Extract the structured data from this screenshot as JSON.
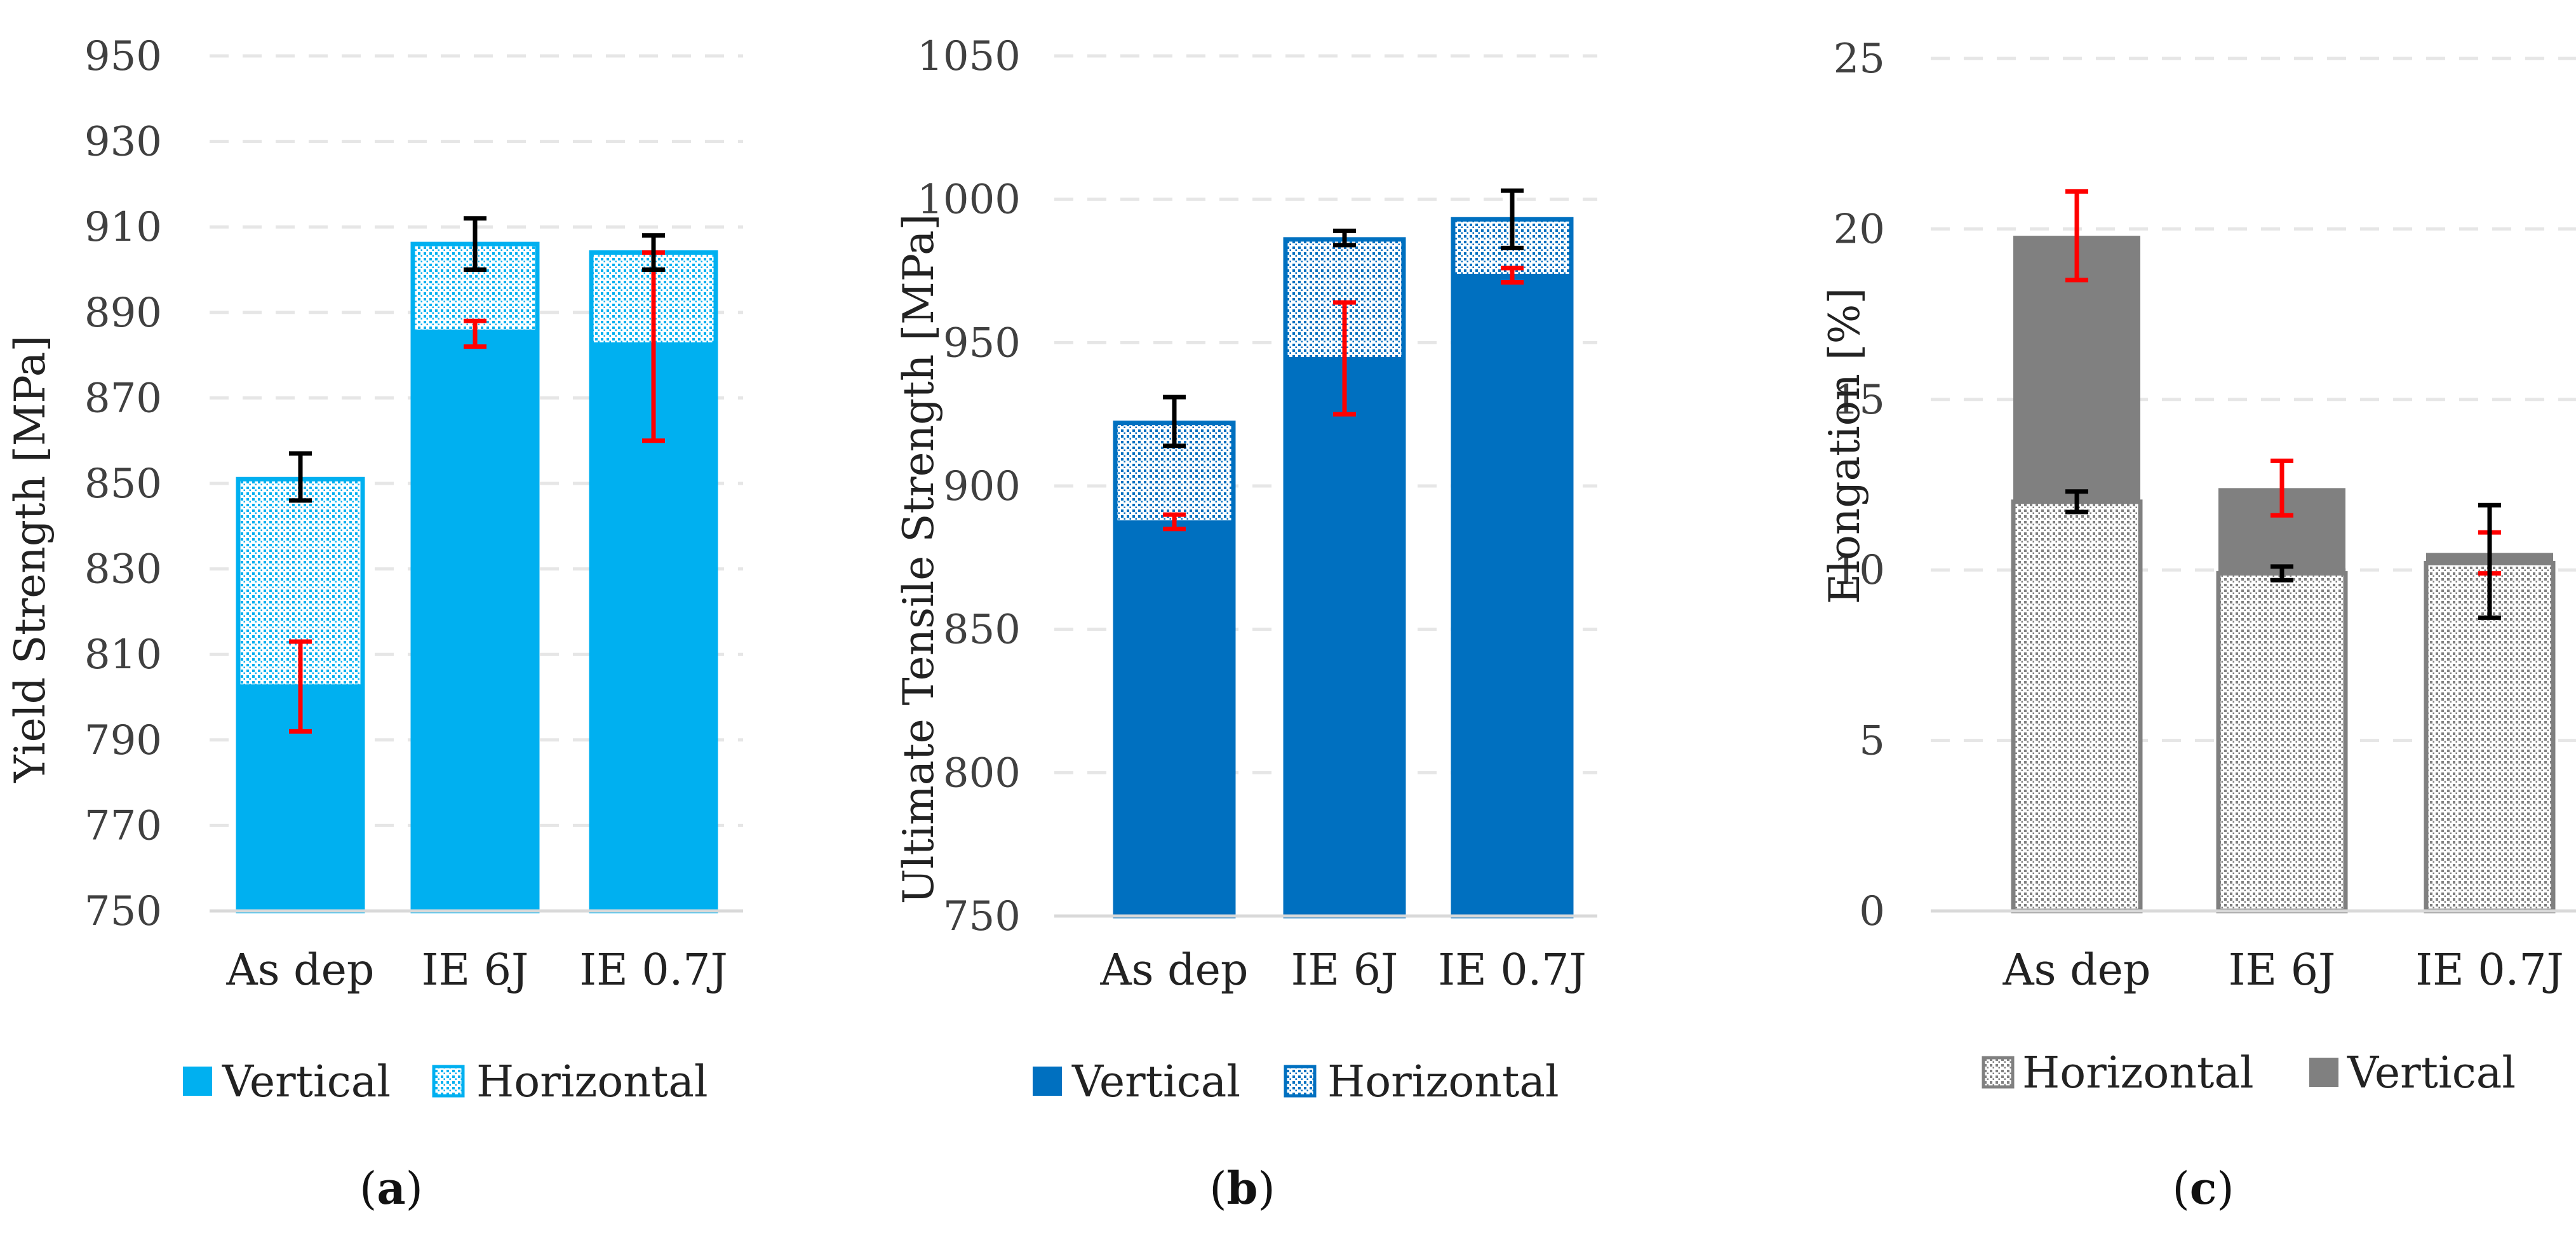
{
  "chart_data": [
    {
      "panel_label": "a",
      "type": "bar",
      "stacking": "overlay",
      "ylabel": "Yield Strength [MPa]",
      "ylim": [
        750,
        950
      ],
      "yticks": [
        750,
        770,
        790,
        810,
        830,
        850,
        870,
        890,
        910,
        930,
        950
      ],
      "grid": true,
      "legend_position": "bottom",
      "categories": [
        "As dep",
        "IE 6J",
        "IE 0.7J"
      ],
      "series": [
        {
          "name": "Vertical",
          "style": "solid",
          "color": "#00b0f0",
          "values": [
            803,
            886,
            883
          ],
          "error_bars": {
            "color": "#ff0000",
            "low": [
              792,
              882,
              860
            ],
            "high": [
              813,
              888,
              904
            ]
          }
        },
        {
          "name": "Horizontal",
          "style": "dotted",
          "color": "#00b0f0",
          "values": [
            851,
            906,
            904
          ],
          "error_bars": {
            "color": "#000000",
            "low": [
              846,
              900,
              900
            ],
            "high": [
              857,
              912,
              908
            ]
          }
        }
      ],
      "legend_order": [
        "Vertical",
        "Horizontal"
      ]
    },
    {
      "panel_label": "b",
      "type": "bar",
      "stacking": "overlay",
      "ylabel": "Ultimate Tensile Strength [MPa]",
      "ylim": [
        750,
        1050
      ],
      "yticks": [
        750,
        800,
        850,
        900,
        950,
        1000,
        1050
      ],
      "grid": true,
      "legend_position": "bottom",
      "categories": [
        "As dep",
        "IE 6J",
        "IE 0.7J"
      ],
      "series": [
        {
          "name": "Vertical",
          "style": "solid",
          "color": "#0070c0",
          "values": [
            888,
            945,
            974
          ],
          "error_bars": {
            "color": "#ff0000",
            "low": [
              885,
              925,
              971
            ],
            "high": [
              890,
              964,
              976
            ]
          }
        },
        {
          "name": "Horizontal",
          "style": "dotted",
          "color": "#0070c0",
          "values": [
            922,
            986,
            993
          ],
          "error_bars": {
            "color": "#000000",
            "low": [
              914,
              984,
              983
            ],
            "high": [
              931,
              989,
              1003
            ]
          }
        }
      ],
      "legend_order": [
        "Vertical",
        "Horizontal"
      ]
    },
    {
      "panel_label": "c",
      "type": "bar",
      "stacking": "overlay",
      "ylabel": "Elongation [%]",
      "ylim": [
        0,
        25
      ],
      "yticks": [
        0,
        5,
        10,
        15,
        20,
        25
      ],
      "grid": true,
      "legend_position": "bottom",
      "categories": [
        "As dep",
        "IE 6J",
        "IE 0.7J"
      ],
      "series": [
        {
          "name": "Vertical",
          "style": "solid",
          "color": "#808080",
          "values": [
            19.8,
            12.4,
            10.5
          ],
          "error_bars": {
            "color": "#ff0000",
            "low": [
              18.5,
              11.6,
              9.9
            ],
            "high": [
              21.1,
              13.2,
              11.1
            ]
          }
        },
        {
          "name": "Horizontal",
          "style": "dotted",
          "color": "#808080",
          "values": [
            12.0,
            9.9,
            10.2
          ],
          "error_bars": {
            "color": "#000000",
            "low": [
              11.7,
              9.7,
              8.6
            ],
            "high": [
              12.3,
              10.1,
              11.9
            ]
          }
        }
      ],
      "legend_order": [
        "Horizontal",
        "Vertical"
      ]
    }
  ]
}
